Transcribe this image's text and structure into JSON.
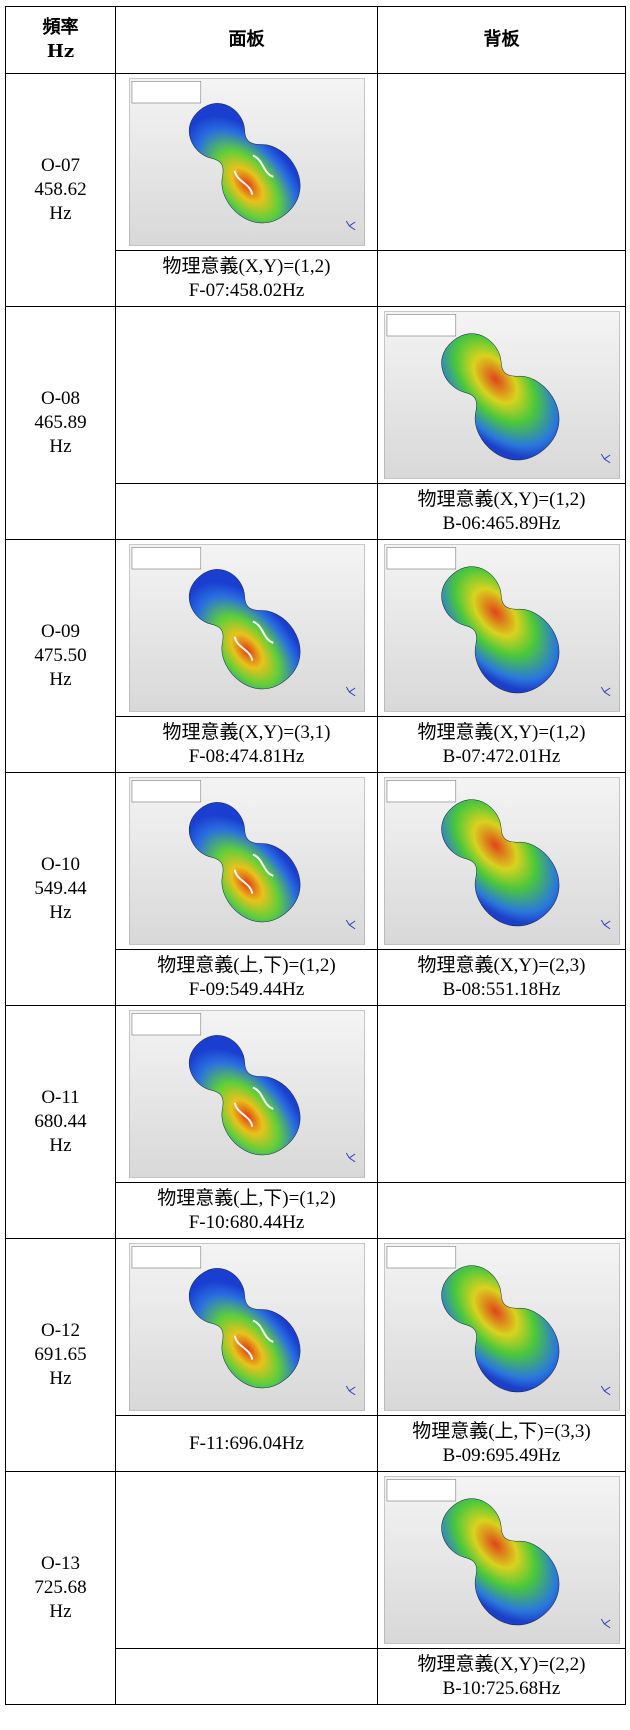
{
  "table": {
    "header": {
      "freq": [
        "頻率",
        "Hz"
      ],
      "front": "面板",
      "back": "背板"
    },
    "rows": [
      {
        "mode": [
          "O-07",
          "458.62",
          "Hz"
        ],
        "front": [
          "物理意義(X,Y)=(1,2)",
          "F-07:458.02Hz"
        ],
        "back": null
      },
      {
        "mode": [
          "O-08",
          "465.89",
          "Hz"
        ],
        "front": null,
        "back": [
          "物理意義(X,Y)=(1,2)",
          "B-06:465.89Hz"
        ]
      },
      {
        "mode": [
          "O-09",
          "475.50",
          "Hz"
        ],
        "front": [
          "物理意義(X,Y)=(3,1)",
          "F-08:474.81Hz"
        ],
        "back": [
          "物理意義(X,Y)=(1,2)",
          "B-07:472.01Hz"
        ]
      },
      {
        "mode": [
          "O-10",
          "549.44",
          "Hz"
        ],
        "front": [
          "物理意義(上,下)=(1,2)",
          "F-09:549.44Hz"
        ],
        "back": [
          "物理意義(X,Y)=(2,3)",
          "B-08:551.18Hz"
        ]
      },
      {
        "mode": [
          "O-11",
          "680.44",
          "Hz"
        ],
        "front": [
          "物理意義(上,下)=(1,2)",
          "F-10:680.44Hz"
        ],
        "back": null
      },
      {
        "mode": [
          "O-12",
          "691.65",
          "Hz"
        ],
        "front": [
          "F-11:696.04Hz"
        ],
        "back": [
          "物理意義(上,下)=(3,3)",
          "B-09:695.49Hz"
        ]
      },
      {
        "mode": [
          "O-13",
          "725.68",
          "Hz"
        ],
        "front": null,
        "back": [
          "物理意義(X,Y)=(2,2)",
          "B-10:725.68Hz"
        ]
      }
    ]
  }
}
